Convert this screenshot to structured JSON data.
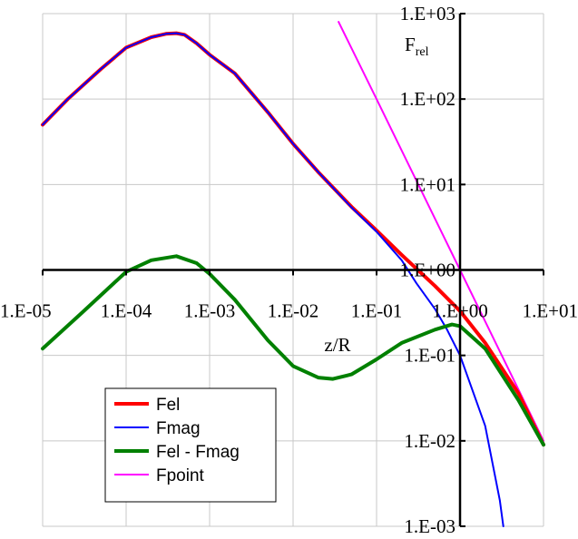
{
  "chart_data": {
    "type": "line",
    "title": "",
    "xlabel": "z/R",
    "ylabel_main": "F",
    "ylabel_sub": "rel",
    "xscale": "log",
    "yscale": "log",
    "xlim": [
      1e-05,
      10
    ],
    "ylim": [
      0.001,
      1000
    ],
    "grid": true,
    "legend_position": "bottom-left",
    "x_tick_labels": [
      "1.E-05",
      "1.E-04",
      "1.E-03",
      "1.E-02",
      "1.E-01",
      "1.E+00",
      "1.E+01"
    ],
    "y_tick_labels": [
      "1.E-03",
      "1.E-02",
      "1.E-01",
      "1.E+00",
      "1.E+01",
      "1.E+02",
      "1.E+03"
    ],
    "series": [
      {
        "name": "Fel",
        "color": "#ff0000",
        "x": [
          1e-05,
          2e-05,
          5e-05,
          0.0001,
          0.0002,
          0.0003,
          0.0004,
          0.0005,
          0.0007,
          0.001,
          0.002,
          0.005,
          0.01,
          0.02,
          0.05,
          0.1,
          0.2,
          0.5,
          1,
          2,
          5,
          10
        ],
        "values": [
          50,
          100,
          225,
          400,
          530,
          580,
          590,
          565,
          450,
          330,
          200,
          70,
          30,
          14,
          5.5,
          2.9,
          1.5,
          0.65,
          0.33,
          0.14,
          0.036,
          0.009
        ]
      },
      {
        "name": "Fmag",
        "color": "#0000ff",
        "x": [
          1e-05,
          2e-05,
          5e-05,
          0.0001,
          0.0002,
          0.0003,
          0.0004,
          0.0005,
          0.0007,
          0.001,
          0.002,
          0.005,
          0.01,
          0.02,
          0.05,
          0.1,
          0.2,
          0.3,
          0.5,
          0.7,
          1,
          2,
          3,
          3.3
        ],
        "values": [
          50,
          100,
          225,
          400,
          530,
          580,
          590,
          565,
          450,
          330,
          200,
          70,
          30,
          14,
          5.4,
          2.8,
          1.3,
          0.7,
          0.35,
          0.2,
          0.1,
          0.015,
          0.002,
          0.001
        ]
      },
      {
        "name": "Fel - Fmag",
        "color": "#008000",
        "x": [
          1e-05,
          3e-05,
          0.0001,
          0.0002,
          0.0004,
          0.0007,
          0.001,
          0.002,
          0.005,
          0.01,
          0.02,
          0.03,
          0.05,
          0.1,
          0.2,
          0.5,
          0.8,
          1,
          2,
          5,
          10
        ],
        "values": [
          0.12,
          0.32,
          0.95,
          1.3,
          1.45,
          1.2,
          0.9,
          0.45,
          0.15,
          0.075,
          0.055,
          0.053,
          0.06,
          0.09,
          0.14,
          0.2,
          0.23,
          0.22,
          0.12,
          0.03,
          0.009
        ]
      },
      {
        "name": "Fpoint",
        "color": "#ff00ff",
        "x": [
          0.035,
          0.1,
          1,
          10
        ],
        "values": [
          800,
          100,
          1,
          0.01
        ]
      }
    ]
  }
}
